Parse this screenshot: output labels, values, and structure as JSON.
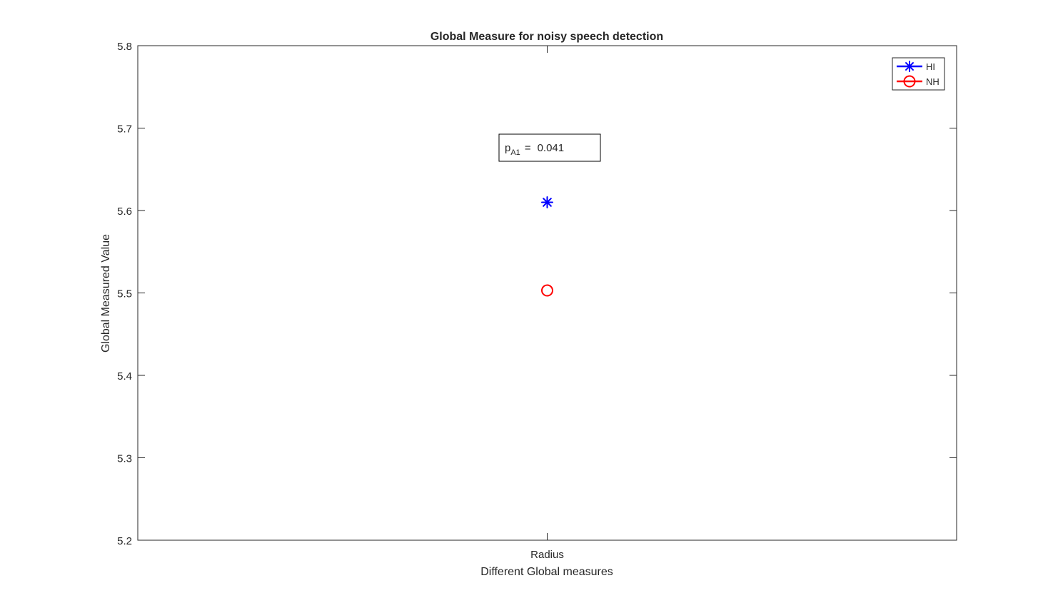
{
  "chart_data": {
    "type": "scatter",
    "title": "Global Measure for noisy speech detection",
    "xlabel": "Different Global measures",
    "ylabel": "Global Measured Value",
    "categories": [
      "Radius"
    ],
    "ylim": [
      5.2,
      5.8
    ],
    "yticks": [
      "5.2",
      "5.3",
      "5.4",
      "5.5",
      "5.6",
      "5.7",
      "5.8"
    ],
    "grid": false,
    "legend_position": "top-right",
    "series": [
      {
        "name": "HI",
        "values": [
          5.61
        ],
        "marker": "asterisk",
        "color": "#0000ff"
      },
      {
        "name": "NH",
        "values": [
          5.503
        ],
        "marker": "circle",
        "color": "#ff0000"
      }
    ],
    "annotation": {
      "p_label": "p",
      "p_subscript": "A1",
      "equals": "=",
      "value": "0.041"
    }
  }
}
